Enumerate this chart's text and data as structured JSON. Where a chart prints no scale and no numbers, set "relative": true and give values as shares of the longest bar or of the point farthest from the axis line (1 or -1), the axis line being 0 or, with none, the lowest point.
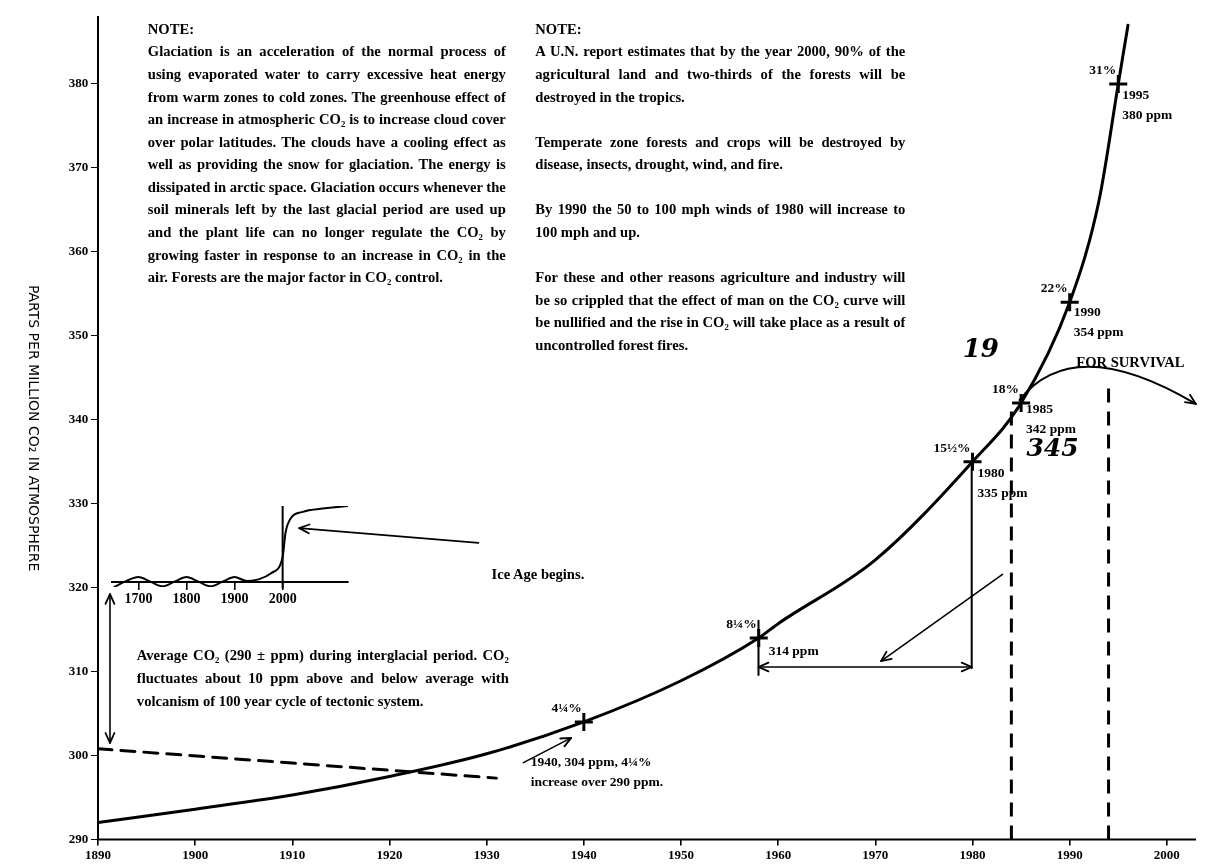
{
  "chart_data": [
    {
      "type": "line",
      "ylabel": "PARTS PER MILLION CO₂ IN ATMOSPHERE",
      "xlim": [
        1890,
        2003
      ],
      "ylim": [
        290,
        388
      ],
      "xticks": [
        1890,
        1900,
        1910,
        1920,
        1930,
        1940,
        1950,
        1960,
        1970,
        1980,
        1990,
        2000
      ],
      "yticks": [
        290,
        300,
        310,
        320,
        330,
        340,
        350,
        360,
        370,
        380
      ],
      "series": [
        {
          "type": "line",
          "color": "#000000",
          "marker": "none",
          "line_style": "solid",
          "x": [
            1890,
            1900,
            1910,
            1920,
            1930,
            1940,
            1950,
            1958,
            1960,
            1970,
            1980,
            1985,
            1990,
            1993,
            1995,
            1996
          ],
          "values": [
            292,
            293.6,
            295.3,
            297.5,
            300.2,
            304,
            308.9,
            314,
            315.7,
            323.3,
            335,
            342,
            354,
            366,
            380,
            387
          ]
        },
        {
          "type": "line",
          "color": "#000000",
          "marker": "none",
          "line_style": "dashed",
          "x": [
            1890,
            1931
          ],
          "values": [
            300.8,
            297.3
          ]
        },
        {
          "type": "scatter",
          "color": "#000000",
          "marker": "cross",
          "x": [
            1940,
            1958,
            1980,
            1985,
            1990,
            1995
          ],
          "values": [
            304,
            314,
            335,
            342,
            354,
            380
          ]
        }
      ],
      "ref_lines": [
        {
          "axis": "x",
          "value": 1984,
          "line_style": "dashed",
          "color": "#000000"
        },
        {
          "axis": "x",
          "value": 1994,
          "line_style": "dashed",
          "color": "#000000"
        }
      ],
      "annotations": [
        "NOTE:\nGlaciation is an acceleration of the normal process of using evaporated water to carry excessive heat energy from warm zones to cold zones. The greenhouse effect of an increase in atmospheric CO₂ is to increase cloud cover over polar latitudes. The clouds have a cooling effect as well as providing the snow for glaciation. The energy is dissipated in arctic space. Glaciation occurs whenever the soil minerals left by the last glacial period are used up and the plant life can no longer regulate the CO₂ by growing faster in response to an increase in CO₂ in the air. Forests are the major factor in CO₂ control.",
        "NOTE:\nA U.N. report estimates that by the year 2000, 90% of the agricultural land and two-thirds of the forests will be destroyed in the tropics.\n\nTemperate zone forests and crops will be destroyed by disease, insects, drought, wind, and fire.\n\nBy 1990 the 50 to 100 mph winds of 1980 will increase to 100 mph and up.\n\nFor these and other reasons agriculture and industry will be so crippled that the effect of man on the CO₂ curve will be nullified and the rise in CO₂ will take place as a result of uncontrolled forest fires.",
        "Average CO₂ (290 ± ppm) during interglacial period. CO₂ fluctuates about 10 ppm above and below average with volcanism of 100 year cycle of tectonic system.",
        "Ice Age begins.",
        "FOR SURVIVAL",
        "19",
        "345",
        {
          "text": "1940, 304 ppm, 4¼% increase over 290 ppm.",
          "x": 1940,
          "y": 304
        },
        {
          "text": "314 ppm",
          "x": 1958,
          "y": 314
        },
        {
          "text": "1980\n335 ppm",
          "x": 1980,
          "y": 335
        },
        {
          "text": "1985\n342 ppm",
          "x": 1985,
          "y": 342
        },
        {
          "text": "1990\n354 ppm",
          "x": 1990,
          "y": 354
        },
        {
          "text": "1995\n380 ppm",
          "x": 1995,
          "y": 380
        },
        {
          "text": "4¼%",
          "x": 1940,
          "y": 304
        },
        {
          "text": "8¼%",
          "x": 1958,
          "y": 314
        },
        {
          "text": "15½%",
          "x": 1980,
          "y": 335
        },
        {
          "text": "18%",
          "x": 1985,
          "y": 342
        },
        {
          "text": "22%",
          "x": 1990,
          "y": 354
        },
        {
          "text": "31%",
          "x": 1995,
          "y": 380
        }
      ]
    },
    {
      "type": "line",
      "relative": true,
      "xlim": [
        1645,
        2136
      ],
      "xticks": [
        1700,
        1800,
        1900,
        2000
      ],
      "series": [
        {
          "type": "line",
          "color": "#000000",
          "marker": "none",
          "line_style": "solid",
          "x": [
            1650,
            1675,
            1700,
            1725,
            1750,
            1775,
            1800,
            1825,
            1850,
            1875,
            1900,
            1925,
            1950,
            1976,
            2000,
            2006,
            2017,
            2040,
            2088,
            2136
          ],
          "values": [
            -0.06,
            0.02,
            0.07,
            0.01,
            -0.05,
            0.01,
            0.07,
            0.01,
            -0.05,
            0.01,
            0.07,
            0.02,
            0.04,
            0.12,
            0.33,
            0.65,
            0.84,
            0.92,
            0.97,
            1
          ]
        }
      ],
      "ref_lines": [
        {
          "axis": "x",
          "value": 2000,
          "line_style": "solid",
          "color": "#000000"
        }
      ]
    }
  ]
}
